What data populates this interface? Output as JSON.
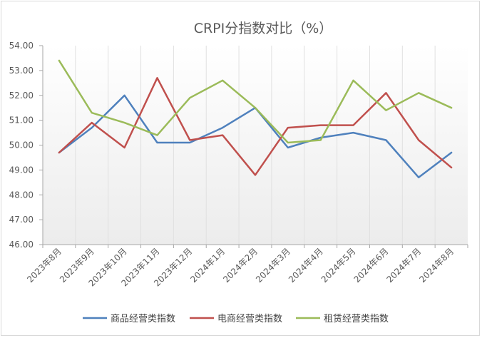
{
  "chart_data": {
    "type": "line",
    "title": "CRPI分指数对比（%）",
    "xlabel": "",
    "ylabel": "",
    "ylim": [
      46.0,
      54.0
    ],
    "y_ticks": [
      "46.00",
      "47.00",
      "48.00",
      "49.00",
      "50.00",
      "51.00",
      "52.00",
      "53.00",
      "54.00"
    ],
    "categories": [
      "2023年8月",
      "2023年9月",
      "2023年10月",
      "2023年11月",
      "2023年12月",
      "2024年1月",
      "2024年2月",
      "2024年3月",
      "2024年4月",
      "2024年5月",
      "2024年6月",
      "2024年7月",
      "2024年8月"
    ],
    "grid": "vertical",
    "legend_position": "bottom",
    "series": [
      {
        "name": "商品经营类指数",
        "color": "#4f81bd",
        "values": [
          49.7,
          50.7,
          52.0,
          50.1,
          50.1,
          50.7,
          51.5,
          49.9,
          50.3,
          50.5,
          50.2,
          48.7,
          49.7
        ]
      },
      {
        "name": "电商经营类指数",
        "color": "#c0504d",
        "values": [
          49.7,
          50.9,
          49.9,
          52.7,
          50.2,
          50.4,
          48.8,
          50.7,
          50.8,
          50.8,
          52.1,
          50.2,
          49.1
        ]
      },
      {
        "name": "租赁经营类指数",
        "color": "#9bbb59",
        "values": [
          53.4,
          51.3,
          50.9,
          50.4,
          51.9,
          52.6,
          51.5,
          50.1,
          50.2,
          52.6,
          51.4,
          52.1,
          51.5
        ]
      }
    ]
  }
}
